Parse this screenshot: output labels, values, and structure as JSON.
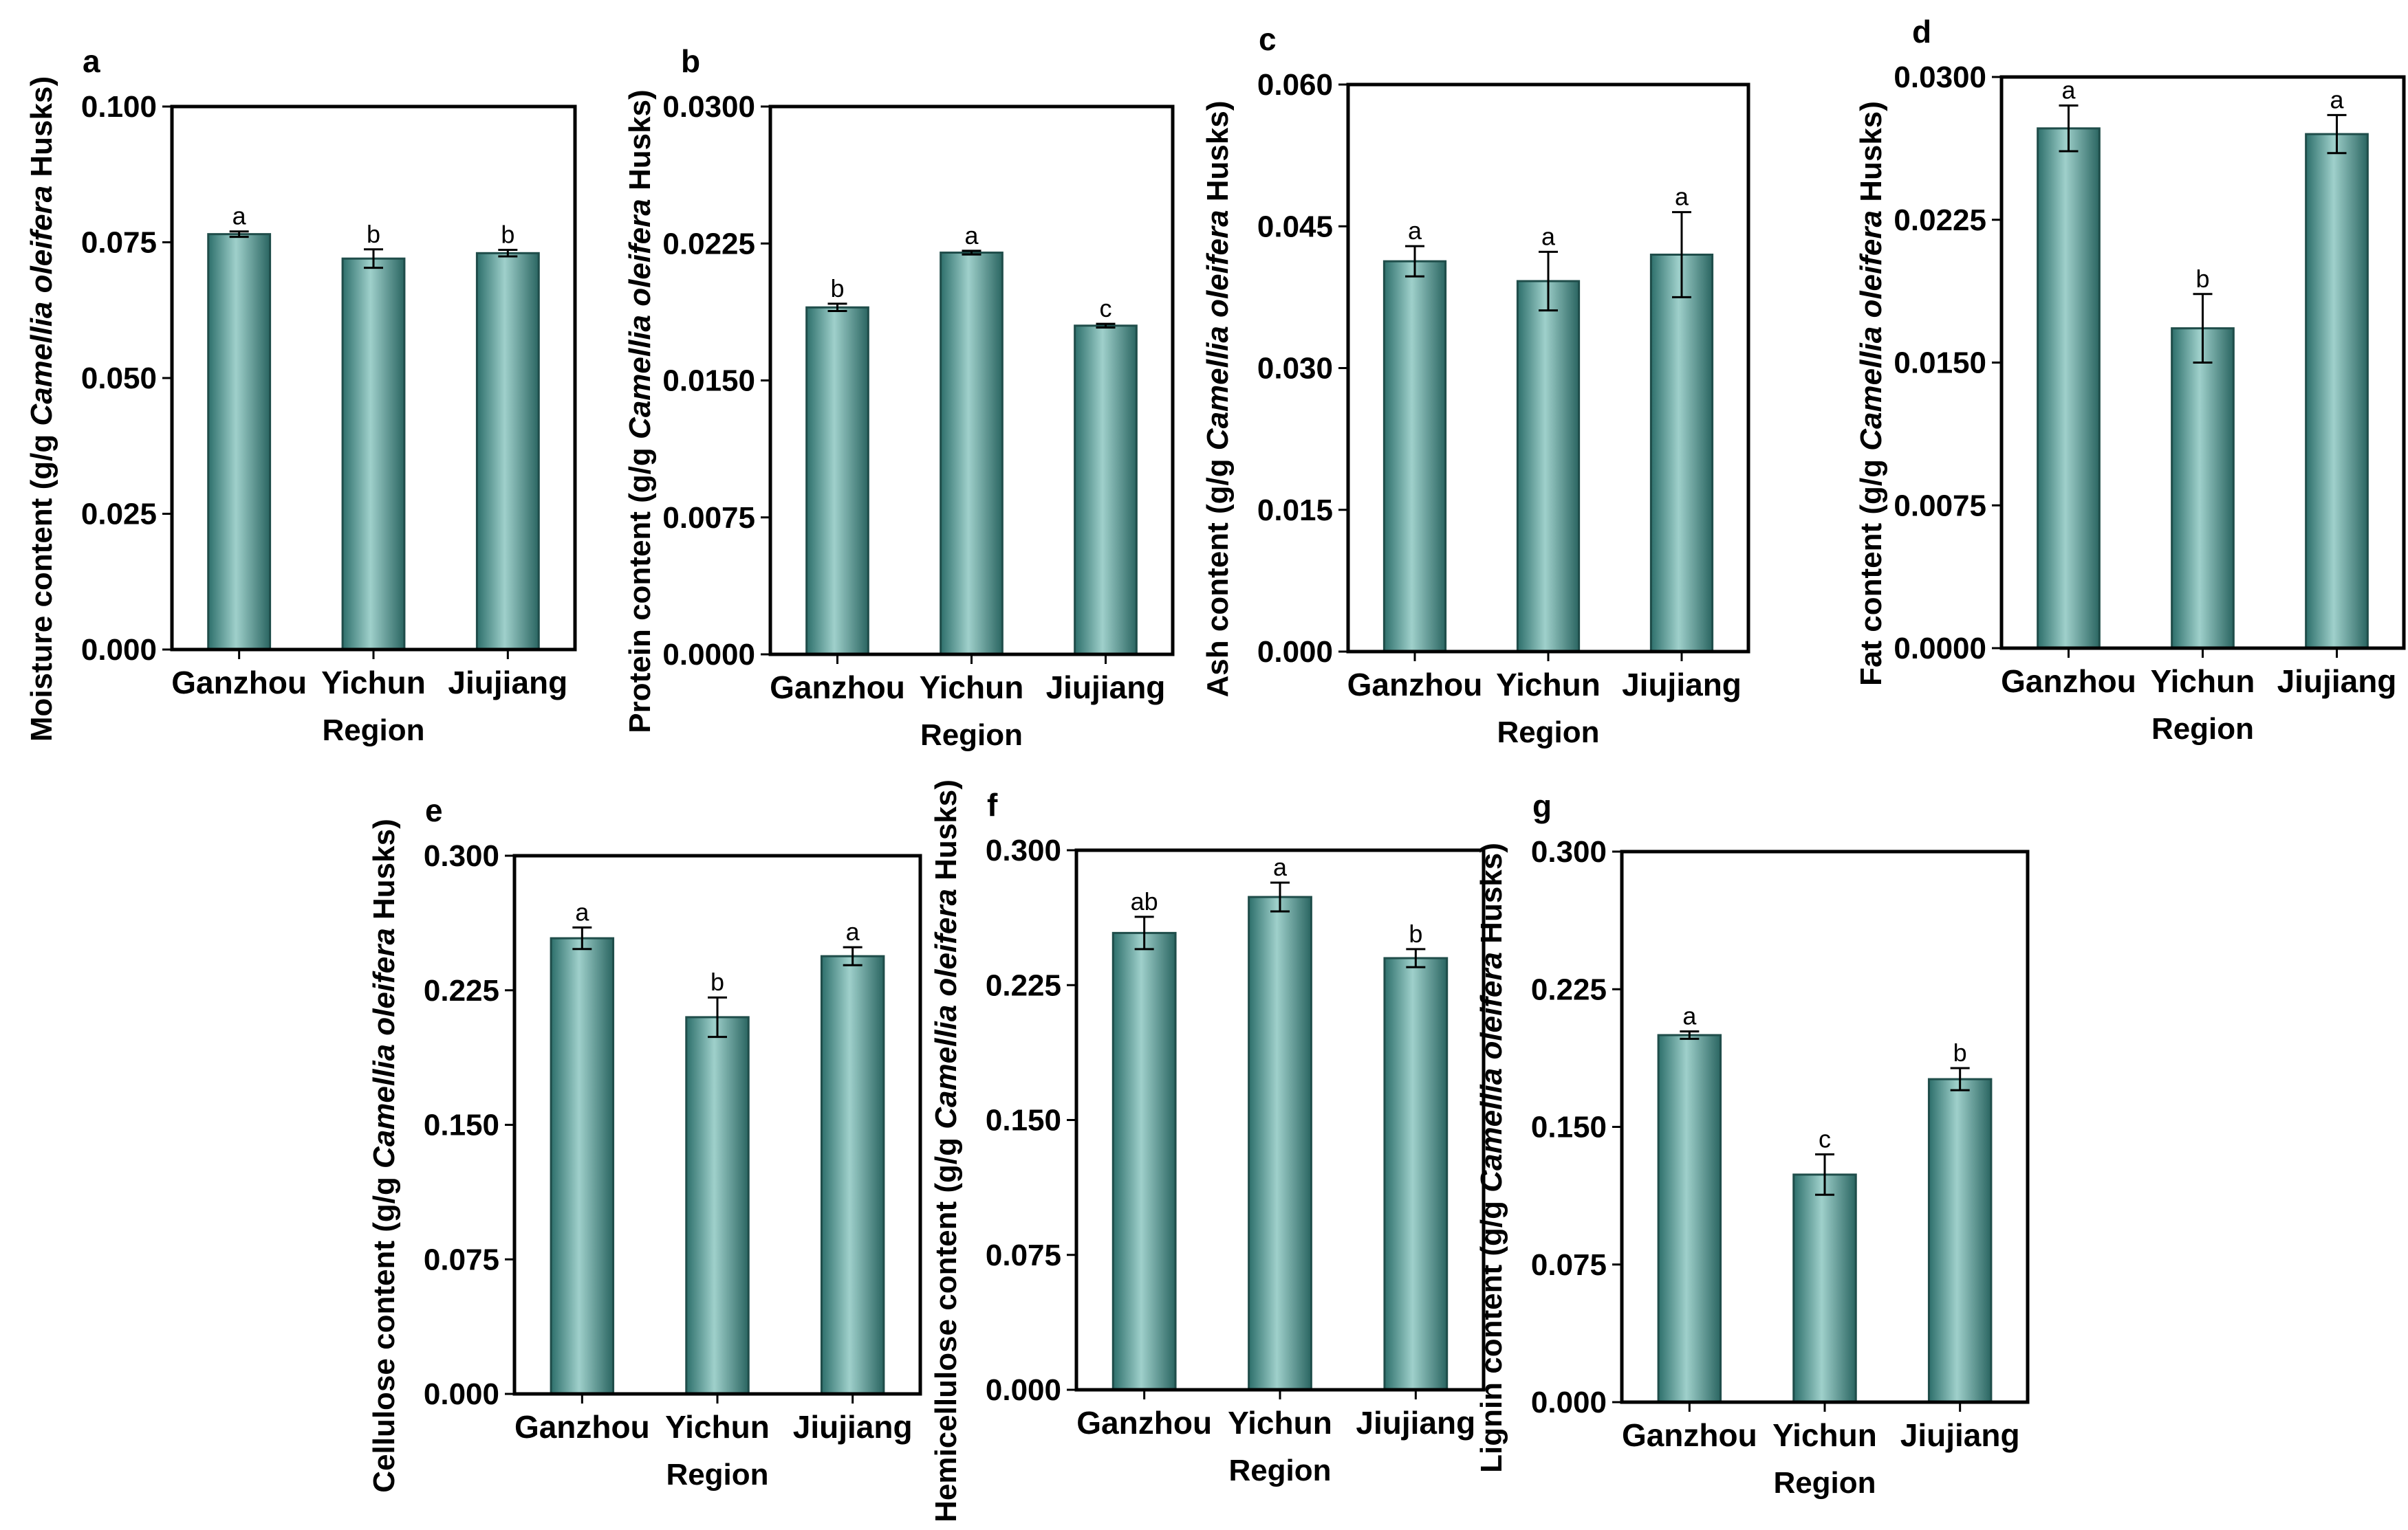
{
  "figure": {
    "bar_color": "#3f8a86",
    "bar_edge": "#1f4d4a"
  },
  "chart_data": [
    {
      "panel": "a",
      "type": "bar",
      "ylabel": {
        "prefix": "Moisture content (g/g ",
        "species": "Camellia oleifera",
        "suffix": " Husks)"
      },
      "xlabel": "Region",
      "categories": [
        "Ganzhou",
        "Yichun",
        "Jiujiang"
      ],
      "values": [
        0.0765,
        0.072,
        0.073
      ],
      "errors": [
        0.0005,
        0.0017,
        0.0006
      ],
      "letters": [
        "a",
        "b",
        "b"
      ],
      "ylim": [
        0,
        0.1
      ],
      "yticks": [
        "0.000",
        "0.025",
        "0.050",
        "0.075",
        "0.100"
      ]
    },
    {
      "panel": "b",
      "type": "bar",
      "ylabel": {
        "prefix": "Protein content (g/g ",
        "species": "Camellia oleifera",
        "suffix": " Husks)"
      },
      "xlabel": "Region",
      "categories": [
        "Ganzhou",
        "Yichun",
        "Jiujiang"
      ],
      "values": [
        0.019,
        0.022,
        0.018
      ],
      "errors": [
        0.0002,
        0.0001,
        0.0001
      ],
      "letters": [
        "b",
        "a",
        "c"
      ],
      "ylim": [
        0,
        0.03
      ],
      "yticks": [
        "0.0000",
        "0.0075",
        "0.0150",
        "0.0225",
        "0.0300"
      ]
    },
    {
      "panel": "c",
      "type": "bar",
      "ylabel": {
        "prefix": "Ash  content (g/g ",
        "species": "Camellia oleifera",
        "suffix": " Husks)"
      },
      "xlabel": "Region",
      "categories": [
        "Ganzhou",
        "Yichun",
        "Jiujiang"
      ],
      "values": [
        0.0413,
        0.0392,
        0.042
      ],
      "errors": [
        0.0016,
        0.0031,
        0.0045
      ],
      "letters": [
        "a",
        "a",
        "a"
      ],
      "ylim": [
        0,
        0.06
      ],
      "yticks": [
        "0.000",
        "0.015",
        "0.030",
        "0.045",
        "0.060"
      ]
    },
    {
      "panel": "d",
      "type": "bar",
      "ylabel": {
        "prefix": "Fat content (g/g ",
        "species": "Camellia oleifera",
        "suffix": " Husks)"
      },
      "xlabel": "Region",
      "categories": [
        "Ganzhou",
        "Yichun",
        "Jiujiang"
      ],
      "values": [
        0.0273,
        0.0168,
        0.027
      ],
      "errors": [
        0.0012,
        0.0018,
        0.001
      ],
      "letters": [
        "a",
        "b",
        "a"
      ],
      "ylim": [
        0,
        0.03
      ],
      "yticks": [
        "0.0000",
        "0.0075",
        "0.0150",
        "0.0225",
        "0.0300"
      ]
    },
    {
      "panel": "e",
      "type": "bar",
      "ylabel": {
        "prefix": "Cellulose content (g/g ",
        "species": "Camellia oleifera",
        "suffix": " Husks)"
      },
      "xlabel": "Region",
      "categories": [
        "Ganzhou",
        "Yichun",
        "Jiujiang"
      ],
      "values": [
        0.254,
        0.21,
        0.244
      ],
      "errors": [
        0.006,
        0.011,
        0.005
      ],
      "letters": [
        "a",
        "b",
        "a"
      ],
      "ylim": [
        0,
        0.3
      ],
      "yticks": [
        "0.000",
        "0.075",
        "0.150",
        "0.225",
        "0.300"
      ]
    },
    {
      "panel": "f",
      "type": "bar",
      "ylabel": {
        "prefix": "Hemicellulose content (g/g ",
        "species": "Camellia oleifera",
        "suffix": " Husks)"
      },
      "xlabel": "Region",
      "categories": [
        "Ganzhou",
        "Yichun",
        "Jiujiang"
      ],
      "values": [
        0.254,
        0.274,
        0.24
      ],
      "errors": [
        0.009,
        0.008,
        0.005
      ],
      "letters": [
        "ab",
        "a",
        "b"
      ],
      "ylim": [
        0,
        0.3
      ],
      "yticks": [
        "0.000",
        "0.075",
        "0.150",
        "0.225",
        "0.300"
      ]
    },
    {
      "panel": "g",
      "type": "bar",
      "ylabel": {
        "prefix": "Lignin content (g/g ",
        "species": "Camellia oleifera",
        "suffix": " Husks)"
      },
      "xlabel": "Region",
      "categories": [
        "Ganzhou",
        "Yichun",
        "Jiujiang"
      ],
      "values": [
        0.2,
        0.124,
        0.176
      ],
      "errors": [
        0.002,
        0.011,
        0.006
      ],
      "letters": [
        "a",
        "c",
        "b"
      ],
      "ylim": [
        0,
        0.3
      ],
      "yticks": [
        "0.000",
        "0.075",
        "0.150",
        "0.225",
        "0.300"
      ]
    }
  ]
}
